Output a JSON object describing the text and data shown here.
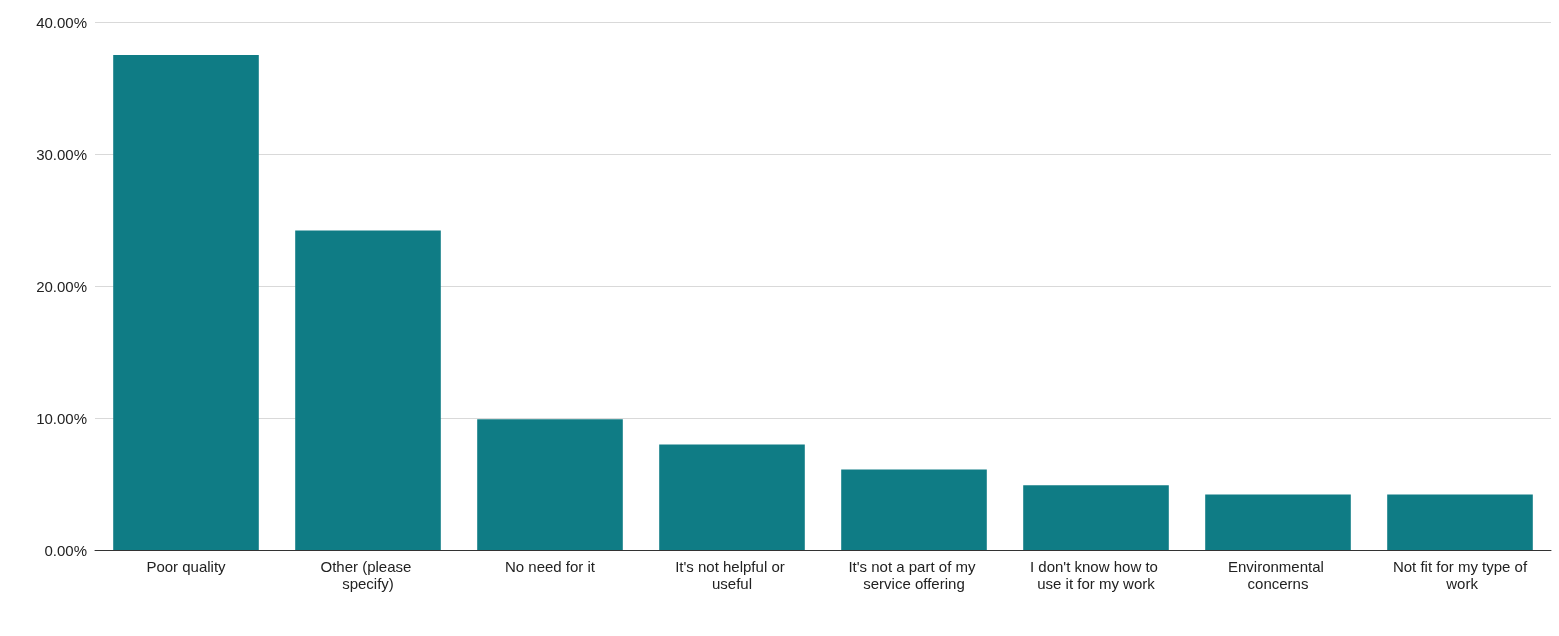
{
  "chart_data": {
    "type": "bar",
    "categories": [
      "Poor quality",
      "Other (please specify)",
      "No need for it",
      "It's not helpful or useful",
      "It's not a part of my service offering",
      "I don't know how to use it for my work",
      "Environmental concerns",
      "Not fit for my type of work"
    ],
    "values": [
      37.5,
      24.2,
      9.9,
      8.0,
      6.1,
      4.9,
      4.2,
      4.2
    ],
    "color": "#0f7c85",
    "ylim": [
      0,
      40
    ],
    "yticks": [
      {
        "value": 0,
        "label": "0.00%"
      },
      {
        "value": 10,
        "label": "10.00%"
      },
      {
        "value": 20,
        "label": "20.00%"
      },
      {
        "value": 30,
        "label": "30.00%"
      },
      {
        "value": 40,
        "label": "40.00%"
      }
    ],
    "grid": "y"
  }
}
